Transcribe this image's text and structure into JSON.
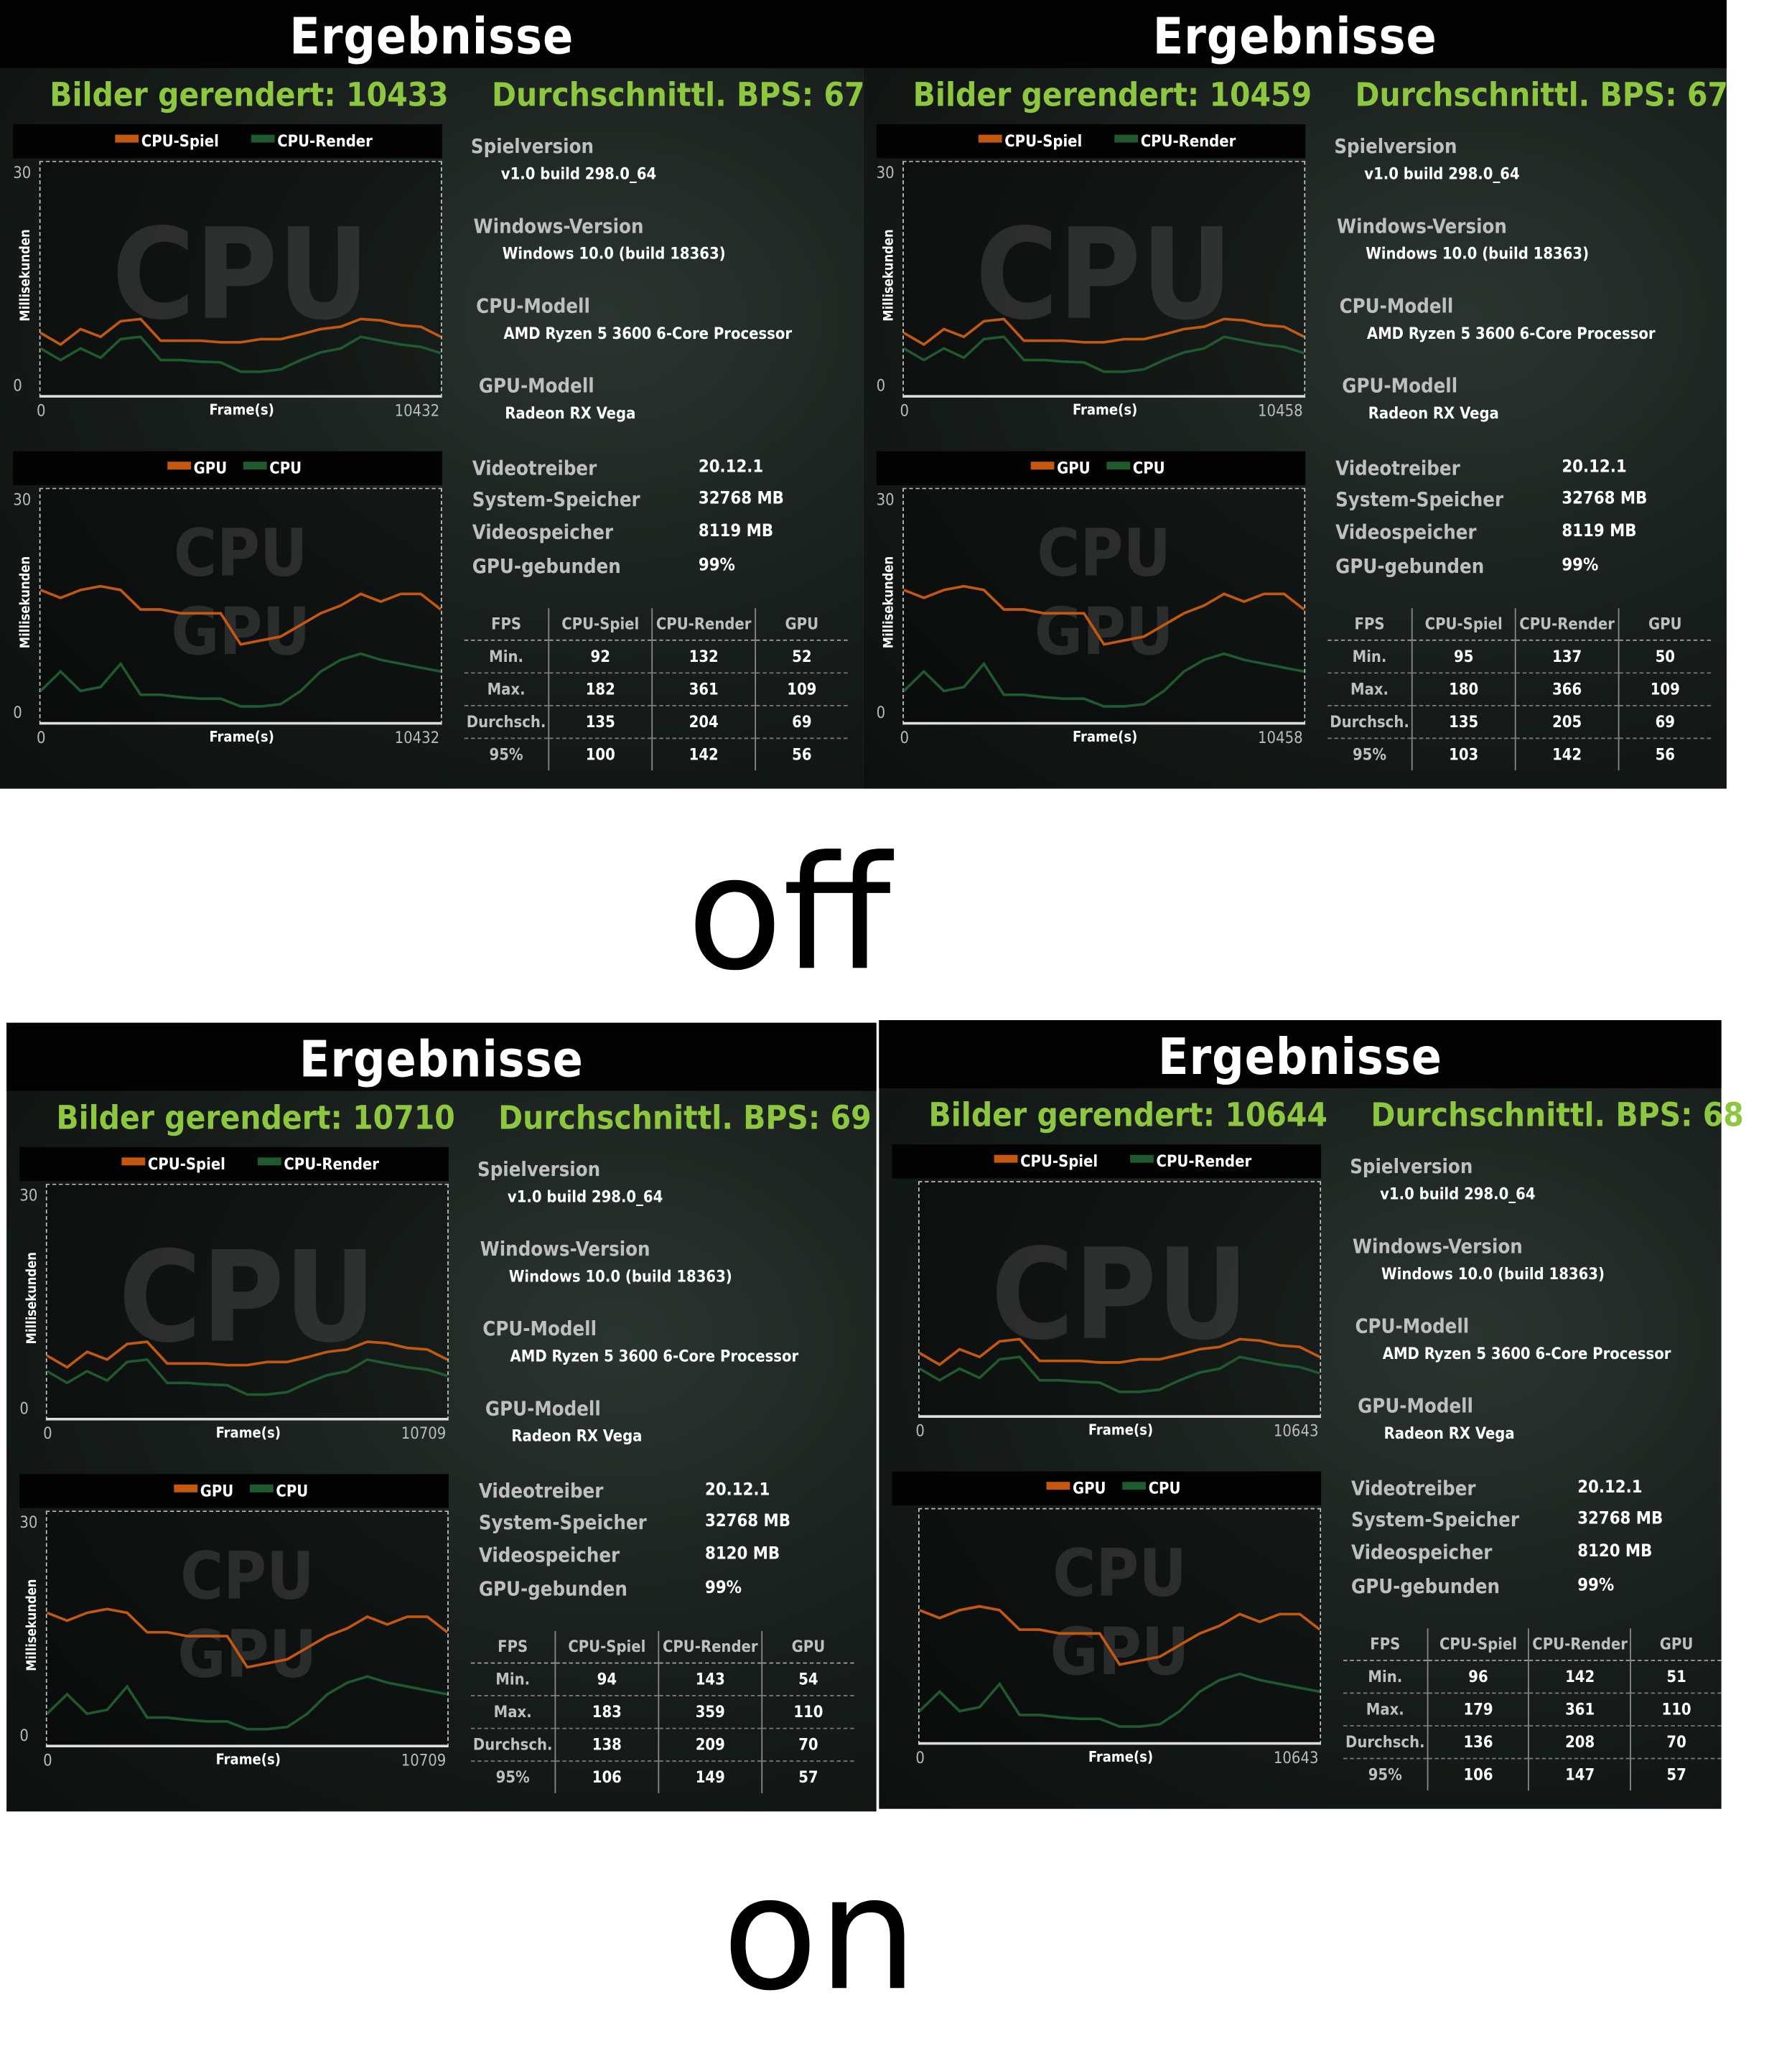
{
  "colors": {
    "cpu_game": "#c4580f",
    "cpu_render": "#1e5a2e",
    "stat_green": "#8dc63f"
  },
  "labels": {
    "off": "off",
    "on": "on"
  },
  "panels": [
    {
      "title": "Ergebnisse",
      "frames_label": "Bilder gerendert:",
      "frames": "10433",
      "bps_label": "Durchschnittl. BPS:",
      "bps": "67",
      "chart1": {
        "legend": [
          "CPU-Spiel",
          "CPU-Render"
        ],
        "watermark": "CPU",
        "y_ticks": [
          "30",
          "0"
        ],
        "x_min": "0",
        "x_max": "10432",
        "xlabel": "Frame(s)",
        "ylabel": "Millisekunden",
        "series": [
          [
            8,
            6.5,
            8.5,
            7.5,
            9.5,
            9.8,
            7,
            7,
            7,
            6.8,
            6.8,
            7.2,
            7.2,
            7.8,
            8.5,
            8.8,
            9.8,
            9.6,
            9,
            8.8,
            7.5
          ],
          [
            6,
            4.5,
            6,
            4.8,
            7.2,
            7.5,
            4.5,
            4.5,
            4.3,
            4.2,
            3,
            3,
            3.3,
            4.5,
            5.5,
            6,
            7.5,
            7,
            6.5,
            6.2,
            5.4
          ]
        ]
      },
      "chart2": {
        "legend": [
          "GPU",
          "CPU"
        ],
        "watermark": [
          "CPU",
          "GPU"
        ],
        "y_ticks": [
          "30",
          "0"
        ],
        "x_min": "0",
        "x_max": "10432",
        "xlabel": "Frame(s)",
        "ylabel": "Millisekunden",
        "series": [
          [
            17,
            16,
            17,
            17.5,
            17,
            14.5,
            14.5,
            14,
            14,
            14,
            10,
            10.5,
            11,
            12.5,
            14,
            15,
            16.5,
            15.5,
            16.5,
            16.5,
            14.5
          ],
          [
            4,
            6.5,
            4,
            4.5,
            7.5,
            3.5,
            3.5,
            3.2,
            3,
            3,
            2,
            2,
            2.3,
            4,
            6.5,
            8,
            8.8,
            8,
            7.5,
            7,
            6.5
          ]
        ]
      },
      "info": {
        "game_version_label": "Spielversion",
        "game_version": "v1.0 build 298.0_64",
        "windows_label": "Windows-Version",
        "windows": "Windows 10.0 (build 18363)",
        "cpu_label": "CPU-Modell",
        "cpu": "AMD Ryzen 5 3600 6-Core Processor",
        "gpu_label": "GPU-Modell",
        "gpu": "Radeon RX Vega",
        "driver_label": "Videotreiber",
        "driver": "20.12.1",
        "sysmem_label": "System-Speicher",
        "sysmem": "32768 MB",
        "vram_label": "Videospeicher",
        "vram": "8119 MB",
        "gpubound_label": "GPU-gebunden",
        "gpubound": "99%"
      },
      "table": {
        "headers": [
          "FPS",
          "CPU-Spiel",
          "CPU-Render",
          "GPU"
        ],
        "rows": [
          [
            "Min.",
            "92",
            "132",
            "52"
          ],
          [
            "Max.",
            "182",
            "361",
            "109"
          ],
          [
            "Durchsch.",
            "135",
            "204",
            "69"
          ],
          [
            "95%",
            "100",
            "142",
            "56"
          ]
        ]
      }
    },
    {
      "title": "Ergebnisse",
      "frames_label": "Bilder gerendert:",
      "frames": "10459",
      "bps_label": "Durchschnittl. BPS:",
      "bps": "67",
      "chart1": {
        "legend": [
          "CPU-Spiel",
          "CPU-Render"
        ],
        "watermark": "CPU",
        "y_ticks": [
          "30",
          "0"
        ],
        "x_min": "0",
        "x_max": "10458",
        "xlabel": "Frame(s)",
        "ylabel": "Millisekunden",
        "series": [
          [
            8,
            6.5,
            8.5,
            7.5,
            9.5,
            9.8,
            7,
            7,
            7,
            6.8,
            6.8,
            7.2,
            7.2,
            7.8,
            8.5,
            8.8,
            9.8,
            9.6,
            9,
            8.8,
            7.5
          ],
          [
            6,
            4.5,
            6,
            4.8,
            7.2,
            7.5,
            4.5,
            4.5,
            4.3,
            4.2,
            3,
            3,
            3.3,
            4.5,
            5.5,
            6,
            7.5,
            7,
            6.5,
            6.2,
            5.4
          ]
        ]
      },
      "chart2": {
        "legend": [
          "GPU",
          "CPU"
        ],
        "watermark": [
          "CPU",
          "GPU"
        ],
        "y_ticks": [
          "30",
          "0"
        ],
        "x_min": "0",
        "x_max": "10458",
        "xlabel": "Frame(s)",
        "ylabel": "Millisekunden",
        "series": [
          [
            17,
            16,
            17,
            17.5,
            17,
            14.5,
            14.5,
            14,
            14,
            14,
            10,
            10.5,
            11,
            12.5,
            14,
            15,
            16.5,
            15.5,
            16.5,
            16.5,
            14.5
          ],
          [
            4,
            6.5,
            4,
            4.5,
            7.5,
            3.5,
            3.5,
            3.2,
            3,
            3,
            2,
            2,
            2.3,
            4,
            6.5,
            8,
            8.8,
            8,
            7.5,
            7,
            6.5
          ]
        ]
      },
      "info": {
        "game_version_label": "Spielversion",
        "game_version": "v1.0 build 298.0_64",
        "windows_label": "Windows-Version",
        "windows": "Windows 10.0 (build 18363)",
        "cpu_label": "CPU-Modell",
        "cpu": "AMD Ryzen 5 3600 6-Core Processor",
        "gpu_label": "GPU-Modell",
        "gpu": "Radeon RX Vega",
        "driver_label": "Videotreiber",
        "driver": "20.12.1",
        "sysmem_label": "System-Speicher",
        "sysmem": "32768 MB",
        "vram_label": "Videospeicher",
        "vram": "8119 MB",
        "gpubound_label": "GPU-gebunden",
        "gpubound": "99%"
      },
      "table": {
        "headers": [
          "FPS",
          "CPU-Spiel",
          "CPU-Render",
          "GPU"
        ],
        "rows": [
          [
            "Min.",
            "95",
            "137",
            "50"
          ],
          [
            "Max.",
            "180",
            "366",
            "109"
          ],
          [
            "Durchsch.",
            "135",
            "205",
            "69"
          ],
          [
            "95%",
            "103",
            "142",
            "56"
          ]
        ]
      }
    },
    {
      "title": "Ergebnisse",
      "frames_label": "Bilder gerendert:",
      "frames": "10710",
      "bps_label": "Durchschnittl. BPS:",
      "bps": "69",
      "chart1": {
        "legend": [
          "CPU-Spiel",
          "CPU-Render"
        ],
        "watermark": "CPU",
        "y_ticks": [
          "30",
          "0"
        ],
        "x_min": "0",
        "x_max": "10709",
        "xlabel": "Frame(s)",
        "ylabel": "Millisekunden",
        "series": [
          [
            8,
            6.5,
            8.5,
            7.5,
            9.5,
            9.8,
            7,
            7,
            7,
            6.8,
            6.8,
            7.2,
            7.2,
            7.8,
            8.5,
            8.8,
            9.8,
            9.6,
            9,
            8.8,
            7.5
          ],
          [
            6,
            4.5,
            6,
            4.8,
            7.2,
            7.5,
            4.5,
            4.5,
            4.3,
            4.2,
            3,
            3,
            3.3,
            4.5,
            5.5,
            6,
            7.5,
            7,
            6.5,
            6.2,
            5.4
          ]
        ]
      },
      "chart2": {
        "legend": [
          "GPU",
          "CPU"
        ],
        "watermark": [
          "CPU",
          "GPU"
        ],
        "y_ticks": [
          "30",
          "0"
        ],
        "x_min": "0",
        "x_max": "10709",
        "xlabel": "Frame(s)",
        "ylabel": "Millisekunden",
        "series": [
          [
            17,
            16,
            17,
            17.5,
            17,
            14.5,
            14.5,
            14,
            14,
            14,
            10,
            10.5,
            11,
            12.5,
            14,
            15,
            16.5,
            15.5,
            16.5,
            16.5,
            14.5
          ],
          [
            4,
            6.5,
            4,
            4.5,
            7.5,
            3.5,
            3.5,
            3.2,
            3,
            3,
            2,
            2,
            2.3,
            4,
            6.5,
            8,
            8.8,
            8,
            7.5,
            7,
            6.5
          ]
        ]
      },
      "info": {
        "game_version_label": "Spielversion",
        "game_version": "v1.0 build 298.0_64",
        "windows_label": "Windows-Version",
        "windows": "Windows 10.0 (build 18363)",
        "cpu_label": "CPU-Modell",
        "cpu": "AMD Ryzen 5 3600 6-Core Processor",
        "gpu_label": "GPU-Modell",
        "gpu": "Radeon RX Vega",
        "driver_label": "Videotreiber",
        "driver": "20.12.1",
        "sysmem_label": "System-Speicher",
        "sysmem": "32768 MB",
        "vram_label": "Videospeicher",
        "vram": "8120 MB",
        "gpubound_label": "GPU-gebunden",
        "gpubound": "99%"
      },
      "table": {
        "headers": [
          "FPS",
          "CPU-Spiel",
          "CPU-Render",
          "GPU"
        ],
        "rows": [
          [
            "Min.",
            "94",
            "143",
            "54"
          ],
          [
            "Max.",
            "183",
            "359",
            "110"
          ],
          [
            "Durchsch.",
            "138",
            "209",
            "70"
          ],
          [
            "95%",
            "106",
            "149",
            "57"
          ]
        ]
      }
    },
    {
      "title": "Ergebnisse",
      "frames_label": "Bilder gerendert:",
      "frames": "10644",
      "bps_label": "Durchschnittl. BPS:",
      "bps": "68",
      "chart1": {
        "legend": [
          "CPU-Spiel",
          "CPU-Render"
        ],
        "watermark": "CPU",
        "y_ticks": [
          "",
          ""
        ],
        "x_min": "0",
        "x_max": "10643",
        "xlabel": "Frame(s)",
        "ylabel": "",
        "series": [
          [
            8,
            6.5,
            8.5,
            7.5,
            9.5,
            9.8,
            7,
            7,
            7,
            6.8,
            6.8,
            7.2,
            7.2,
            7.8,
            8.5,
            8.8,
            9.8,
            9.6,
            9,
            8.8,
            7.5
          ],
          [
            6,
            4.5,
            6,
            4.8,
            7.2,
            7.5,
            4.5,
            4.5,
            4.3,
            4.2,
            3,
            3,
            3.3,
            4.5,
            5.5,
            6,
            7.5,
            7,
            6.5,
            6.2,
            5.4
          ]
        ]
      },
      "chart2": {
        "legend": [
          "GPU",
          "CPU"
        ],
        "watermark": [
          "CPU",
          "GPU"
        ],
        "y_ticks": [
          "",
          ""
        ],
        "x_min": "0",
        "x_max": "10643",
        "xlabel": "Frame(s)",
        "ylabel": "",
        "series": [
          [
            17,
            16,
            17,
            17.5,
            17,
            14.5,
            14.5,
            14,
            14,
            14,
            10,
            10.5,
            11,
            12.5,
            14,
            15,
            16.5,
            15.5,
            16.5,
            16.5,
            14.5
          ],
          [
            4,
            6.5,
            4,
            4.5,
            7.5,
            3.5,
            3.5,
            3.2,
            3,
            3,
            2,
            2,
            2.3,
            4,
            6.5,
            8,
            8.8,
            8,
            7.5,
            7,
            6.5
          ]
        ]
      },
      "info": {
        "game_version_label": "Spielversion",
        "game_version": "v1.0 build 298.0_64",
        "windows_label": "Windows-Version",
        "windows": "Windows 10.0 (build 18363)",
        "cpu_label": "CPU-Modell",
        "cpu": "AMD Ryzen 5 3600 6-Core Processor",
        "gpu_label": "GPU-Modell",
        "gpu": "Radeon RX Vega",
        "driver_label": "Videotreiber",
        "driver": "20.12.1",
        "sysmem_label": "System-Speicher",
        "sysmem": "32768 MB",
        "vram_label": "Videospeicher",
        "vram": "8120 MB",
        "gpubound_label": "GPU-gebunden",
        "gpubound": "99%"
      },
      "table": {
        "headers": [
          "FPS",
          "CPU-Spiel",
          "CPU-Render",
          "GPU"
        ],
        "rows": [
          [
            "Min.",
            "96",
            "142",
            "51"
          ],
          [
            "Max.",
            "179",
            "361",
            "110"
          ],
          [
            "Durchsch.",
            "136",
            "208",
            "70"
          ],
          [
            "95%",
            "106",
            "147",
            "57"
          ]
        ]
      }
    }
  ]
}
